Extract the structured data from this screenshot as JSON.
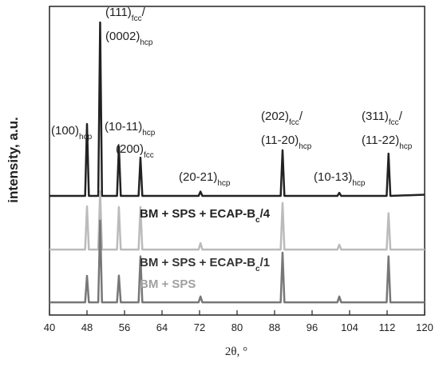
{
  "chart_data": {
    "type": "line",
    "xlabel": "2θ, °",
    "ylabel": "intensity, a.u.",
    "x": [
      40,
      47.6,
      48,
      48.4,
      50.4,
      50.8,
      51.2,
      54.4,
      54.8,
      55.2,
      59,
      59.4,
      59.8,
      71.8,
      72.2,
      72.6,
      89.3,
      89.7,
      90.1,
      101.4,
      101.8,
      102.2,
      111.9,
      112.3,
      112.7,
      120
    ],
    "series": [
      {
        "name": [
          "BM + SPS + ECAP-B",
          "c",
          "/4"
        ],
        "color": "#222222",
        "label_color": "#222222",
        "values": [
          38.6,
          38.6,
          61.9,
          38.6,
          38.6,
          94.8,
          38.6,
          38.6,
          54.7,
          38.6,
          38.6,
          51,
          38.6,
          38.6,
          40,
          38.6,
          38.6,
          53.4,
          38.6,
          38.6,
          39.6,
          38.6,
          38.6,
          52.3,
          38.6,
          39
        ]
      },
      {
        "name": [
          "BM + SPS + ECAP-B",
          "c",
          "/1"
        ],
        "color": "#bbbbbb",
        "label_color": "#333333",
        "values": [
          21.2,
          21.2,
          35.2,
          21.2,
          21.2,
          40,
          21.2,
          21.2,
          35,
          21.2,
          21.2,
          35,
          21.2,
          21.2,
          23.3,
          21.2,
          21.2,
          36.3,
          21.2,
          21.2,
          22.8,
          21.2,
          21.2,
          33,
          21.2,
          21.2
        ]
      },
      {
        "name": [
          "BM + SPS"
        ],
        "color": "#777777",
        "label_color": "#a0a0a0",
        "values": [
          4.1,
          4.1,
          12.7,
          4.1,
          4.1,
          30.6,
          4.1,
          4.1,
          12.8,
          4.1,
          4.1,
          19,
          4.1,
          4.1,
          6,
          4.1,
          4.1,
          20.2,
          4.1,
          4.1,
          6,
          4.1,
          4.1,
          19,
          4.1,
          4.1
        ]
      }
    ],
    "annotations": [
      [
        [
          "(100)",
          "hcp"
        ]
      ],
      [
        [
          "(111)",
          "fcc",
          "/"
        ],
        [
          "(0002)",
          "hcp"
        ]
      ],
      [
        [
          "(10-11)",
          "hcp"
        ]
      ],
      [
        [
          "(200)",
          "fcc"
        ]
      ],
      [
        [
          "(20-21)",
          "hcp"
        ]
      ],
      [
        [
          "(202)",
          "fcc",
          "/"
        ],
        [
          "(11-20)",
          "hcp"
        ]
      ],
      [
        [
          "(10-13)",
          "hcp"
        ]
      ],
      [
        [
          "(311)",
          "fcc",
          "/"
        ],
        [
          "(11-22)",
          "hcp"
        ]
      ]
    ],
    "xlim": [
      40,
      120
    ],
    "ylim": [
      0,
      100
    ],
    "xticks": [
      40,
      48,
      56,
      64,
      72,
      80,
      88,
      96,
      104,
      112,
      120
    ]
  }
}
